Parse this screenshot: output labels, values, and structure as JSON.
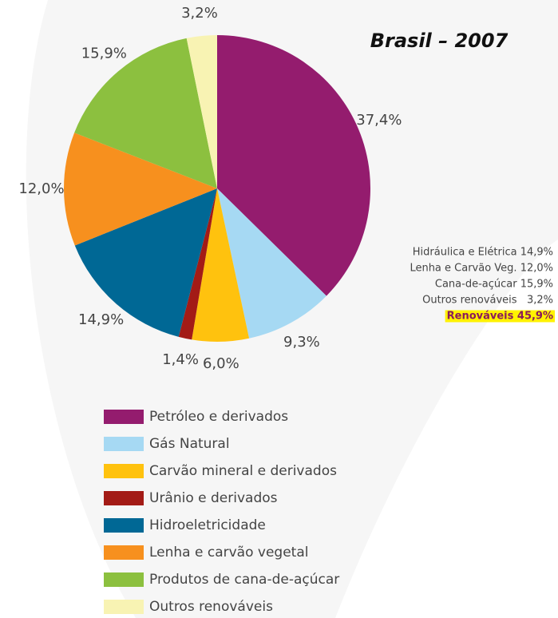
{
  "chart_data": {
    "type": "pie",
    "title": "Brasil – 2007",
    "categories": [
      "Petróleo e derivados",
      "Gás Natural",
      "Carvão mineral e derivados",
      "Urânio e derivados",
      "Hidroeletricidade",
      "Lenha e carvão vegetal",
      "Produtos de cana-de-açúcar",
      "Outros renováveis"
    ],
    "values": [
      37.4,
      9.3,
      6.0,
      1.4,
      14.9,
      12.0,
      15.9,
      3.2
    ],
    "value_labels": [
      "37,4%",
      "9,3%",
      "6,0%",
      "1,4%",
      "14,9%",
      "12,0%",
      "15,9%",
      "3,2%"
    ],
    "colors": [
      "#941c6e",
      "#a6d9f3",
      "#ffc20e",
      "#a31b16",
      "#006895",
      "#f7901e",
      "#8cc03f",
      "#f8f3b3"
    ],
    "annotations": [
      "Hidráulica e Elétrica 14,9%",
      "Lenha e Carvão Veg. 12,0%",
      "Cana-de-açúcar 15,9%",
      "Outros renováveis   3,2%",
      "Renováveis 45,9%"
    ]
  }
}
